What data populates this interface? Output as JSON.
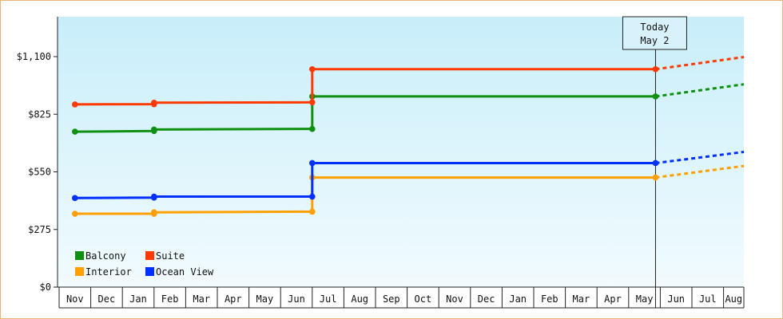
{
  "chart_data": {
    "type": "line",
    "step": true,
    "x": [
      "Nov",
      "Dec",
      "Jan",
      "Feb",
      "Mar",
      "Apr",
      "May",
      "Jun",
      "Jul",
      "Aug",
      "Sep",
      "Oct",
      "Nov",
      "Dec",
      "Jan",
      "Feb",
      "Mar",
      "Apr",
      "May",
      "Jun",
      "Jul",
      "Aug"
    ],
    "y_ticks": [
      "$0",
      "$275",
      "$550",
      "$825",
      "$1,100"
    ],
    "ylim": [
      0,
      1100
    ],
    "grid": false,
    "legend_position": "bottom-left",
    "today_marker": {
      "line1": "Today",
      "line2": "May 2",
      "x": 18.35
    },
    "series": [
      {
        "name": "Balcony",
        "color": "#109010",
        "points": [
          [
            0,
            742
          ],
          [
            2.5,
            745
          ],
          [
            2.5,
            752
          ],
          [
            7.5,
            755
          ],
          [
            7.5,
            910
          ],
          [
            18.35,
            910
          ]
        ],
        "forecast": [
          [
            18.35,
            910
          ],
          [
            21.75,
            968
          ]
        ]
      },
      {
        "name": "Suite",
        "color": "#ff3a00",
        "points": [
          [
            0,
            872
          ],
          [
            2.5,
            873
          ],
          [
            2.5,
            880
          ],
          [
            7.5,
            882
          ],
          [
            7.5,
            1040
          ],
          [
            18.35,
            1040
          ]
        ],
        "forecast": [
          [
            18.35,
            1040
          ],
          [
            21.75,
            1098
          ]
        ]
      },
      {
        "name": "Interior",
        "color": "#ffa000",
        "points": [
          [
            0,
            350
          ],
          [
            2.5,
            350
          ],
          [
            2.5,
            357
          ],
          [
            7.5,
            360
          ],
          [
            7.5,
            523
          ],
          [
            18.35,
            523
          ]
        ],
        "forecast": [
          [
            18.35,
            523
          ],
          [
            21.75,
            578
          ]
        ]
      },
      {
        "name": "Ocean View",
        "color": "#0030ff",
        "points": [
          [
            0,
            425
          ],
          [
            2.5,
            427
          ],
          [
            2.5,
            432
          ],
          [
            7.5,
            432
          ],
          [
            7.5,
            592
          ],
          [
            18.35,
            592
          ]
        ],
        "forecast": [
          [
            18.35,
            592
          ],
          [
            21.75,
            645
          ]
        ]
      }
    ]
  }
}
